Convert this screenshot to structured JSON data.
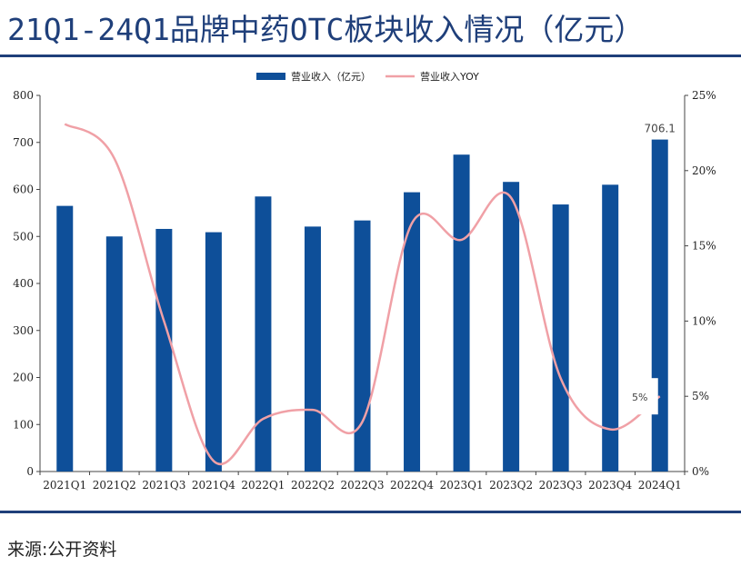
{
  "header": {
    "title": "21Q1-24Q1品牌中药OTC板块收入情况（亿元）"
  },
  "footer": {
    "source": "来源:公开资料"
  },
  "chart_data": {
    "type": "bar",
    "categories": [
      "2021Q1",
      "2021Q2",
      "2021Q3",
      "2021Q4",
      "2022Q1",
      "2022Q2",
      "2022Q3",
      "2022Q4",
      "2023Q1",
      "2023Q2",
      "2023Q3",
      "2023Q4",
      "2024Q1"
    ],
    "series": [
      {
        "name": "营业收入（亿元）",
        "type": "bar",
        "axis": "left",
        "color": "#0e4f99",
        "values": [
          565,
          500,
          516,
          509,
          585,
          521,
          534,
          594,
          674,
          616,
          568,
          610,
          706.1
        ]
      },
      {
        "name": "营业收入YOY",
        "type": "line",
        "axis": "right",
        "color": "#f0a0a6",
        "values": [
          0.231,
          0.208,
          0.1,
          0.007,
          0.035,
          0.041,
          0.033,
          0.165,
          0.154,
          0.182,
          0.062,
          0.028,
          0.05
        ]
      }
    ],
    "ylim": [
      0,
      800
    ],
    "y_ticks": [
      "0",
      "100",
      "200",
      "300",
      "400",
      "500",
      "600",
      "700",
      "800"
    ],
    "y2lim": [
      0,
      0.25
    ],
    "y2_ticks": [
      "0%",
      "5%",
      "10%",
      "15%",
      "20%",
      "25%"
    ],
    "data_labels": [
      {
        "series": 0,
        "index": 12,
        "text": "706.1"
      },
      {
        "series": 1,
        "index": 12,
        "text": "5%"
      }
    ],
    "legend_position": "top",
    "grid": false
  }
}
